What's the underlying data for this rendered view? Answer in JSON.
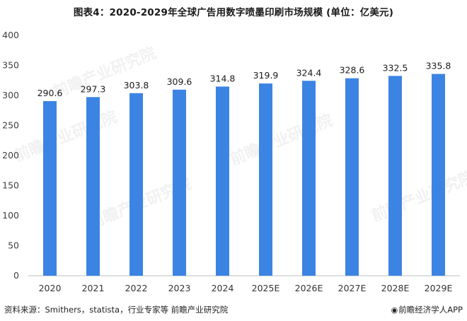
{
  "chart_data": {
    "type": "bar",
    "title": "图表4：2020-2029年全球广告用数字喷墨印刷市场规模 (单位：亿美元)",
    "categories": [
      "2020",
      "2021",
      "2022",
      "2023",
      "2024",
      "2025E",
      "2026E",
      "2027E",
      "2028E",
      "2029E"
    ],
    "values": [
      290.6,
      297.3,
      303.8,
      309.6,
      314.8,
      319.9,
      324.4,
      328.6,
      332.5,
      335.8
    ],
    "data_labels": [
      "290.6",
      "297.3",
      "303.8",
      "309.6",
      "314.8",
      "319.9",
      "324.4",
      "328.6",
      "332.5",
      "335.8"
    ],
    "ylim": [
      0,
      400
    ],
    "yticks": [
      0,
      50,
      100,
      150,
      200,
      250,
      300,
      350,
      400
    ],
    "grid": false,
    "bar_color": "#3c84e4",
    "xlabel": "",
    "ylabel": ""
  },
  "footer": {
    "source": "资料来源：Smithers，statista，行业专家等 前瞻产业研究院",
    "brand": "前瞻经济学人APP"
  },
  "watermark_text": "前瞻产业研究院"
}
